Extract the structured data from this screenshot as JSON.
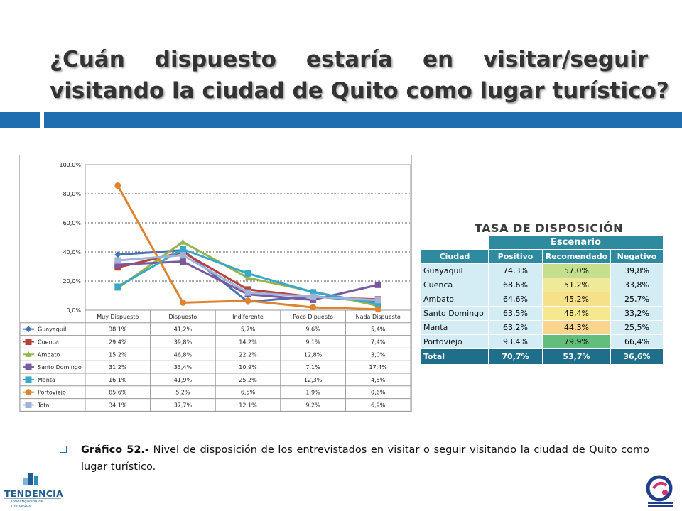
{
  "title": {
    "line1": "¿Cuán dispuesto estaría en visitar/seguir",
    "line2": "visitando la ciudad de Quito como lugar turístico?"
  },
  "colors": {
    "accent": "#1f6fb0",
    "table_header": "#2e8a9e",
    "table_total": "#1f6f8a"
  },
  "chart_data": {
    "type": "line",
    "categories": [
      "Muy Dispuesto",
      "Dispuesto",
      "Indiferente",
      "Poco Dipuesto",
      "Nada Dispuesto"
    ],
    "yticks": [
      "0,0%",
      "20,0%",
      "40,0%",
      "60,0%",
      "80,0%",
      "100,0%"
    ],
    "ylim": [
      0,
      100
    ],
    "grid": true,
    "legend": "data table below chart",
    "series": [
      {
        "name": "Guayaquil",
        "color": "#4672b8",
        "marker": "diamond",
        "values": [
          38.1,
          41.2,
          5.7,
          9.6,
          5.4
        ],
        "labels": [
          "38,1%",
          "41,2%",
          "5,7%",
          "9,6%",
          "5,4%"
        ]
      },
      {
        "name": "Cuenca",
        "color": "#b8413f",
        "marker": "square",
        "values": [
          29.4,
          39.8,
          14.2,
          9.1,
          7.4
        ],
        "labels": [
          "29,4%",
          "39,8%",
          "14,2%",
          "9,1%",
          "7,4%"
        ]
      },
      {
        "name": "Ambato",
        "color": "#94b44d",
        "marker": "triangle",
        "values": [
          15.2,
          46.8,
          22.2,
          12.8,
          3.0
        ],
        "labels": [
          "15,2%",
          "46,8%",
          "22,2%",
          "12,8%",
          "3,0%"
        ]
      },
      {
        "name": "Santo Domingo",
        "color": "#7a5a9e",
        "marker": "square",
        "values": [
          31.2,
          33.4,
          10.9,
          7.1,
          17.4
        ],
        "labels": [
          "31,2%",
          "33,4%",
          "10,9%",
          "7,1%",
          "17,4%"
        ]
      },
      {
        "name": "Manta",
        "color": "#38a8c8",
        "marker": "square",
        "values": [
          16.1,
          41.9,
          25.2,
          12.3,
          4.5
        ],
        "labels": [
          "16,1%",
          "41,9%",
          "25,2%",
          "12,3%",
          "4,5%"
        ]
      },
      {
        "name": "Portoviejo",
        "color": "#e0832e",
        "marker": "circle",
        "values": [
          85.6,
          5.2,
          6.5,
          1.9,
          0.6
        ],
        "labels": [
          "85,6%",
          "5,2%",
          "6,5%",
          "1,9%",
          "0,6%"
        ]
      },
      {
        "name": "Total",
        "color": "#9fb4d8",
        "marker": "square",
        "values": [
          34.1,
          37.7,
          12.1,
          9.2,
          6.9
        ],
        "labels": [
          "34,1%",
          "37,7%",
          "12,1%",
          "9,2%",
          "6,9%"
        ]
      }
    ]
  },
  "tasa": {
    "title": "TASA DE DISPOSICIÓN",
    "scenario_header": "Escenario",
    "columns": [
      "Ciudad",
      "Positivo",
      "Recomendado",
      "Negativo"
    ],
    "rows": [
      [
        "Guayaquil",
        "74,3%",
        "57,0%",
        "39,8%"
      ],
      [
        "Cuenca",
        "68,6%",
        "51,2%",
        "33,8%"
      ],
      [
        "Ambato",
        "64,6%",
        "45,2%",
        "25,7%"
      ],
      [
        "Santo Domingo",
        "63,5%",
        "48,4%",
        "33,2%"
      ],
      [
        "Manta",
        "63,2%",
        "44,3%",
        "25,5%"
      ],
      [
        "Portoviejo",
        "93,4%",
        "79,9%",
        "66,4%"
      ]
    ],
    "total": [
      "Total",
      "70,7%",
      "53,7%",
      "36,6%"
    ]
  },
  "caption": {
    "bold": "Gráfico 52.-",
    "text": " Nivel de disposición de los entrevistados en visitar o seguir visitando la ciudad de Quito como lugar turístico."
  },
  "logos": {
    "left_name": "TENDENCIA",
    "left_sub": "investigación de mercados"
  }
}
